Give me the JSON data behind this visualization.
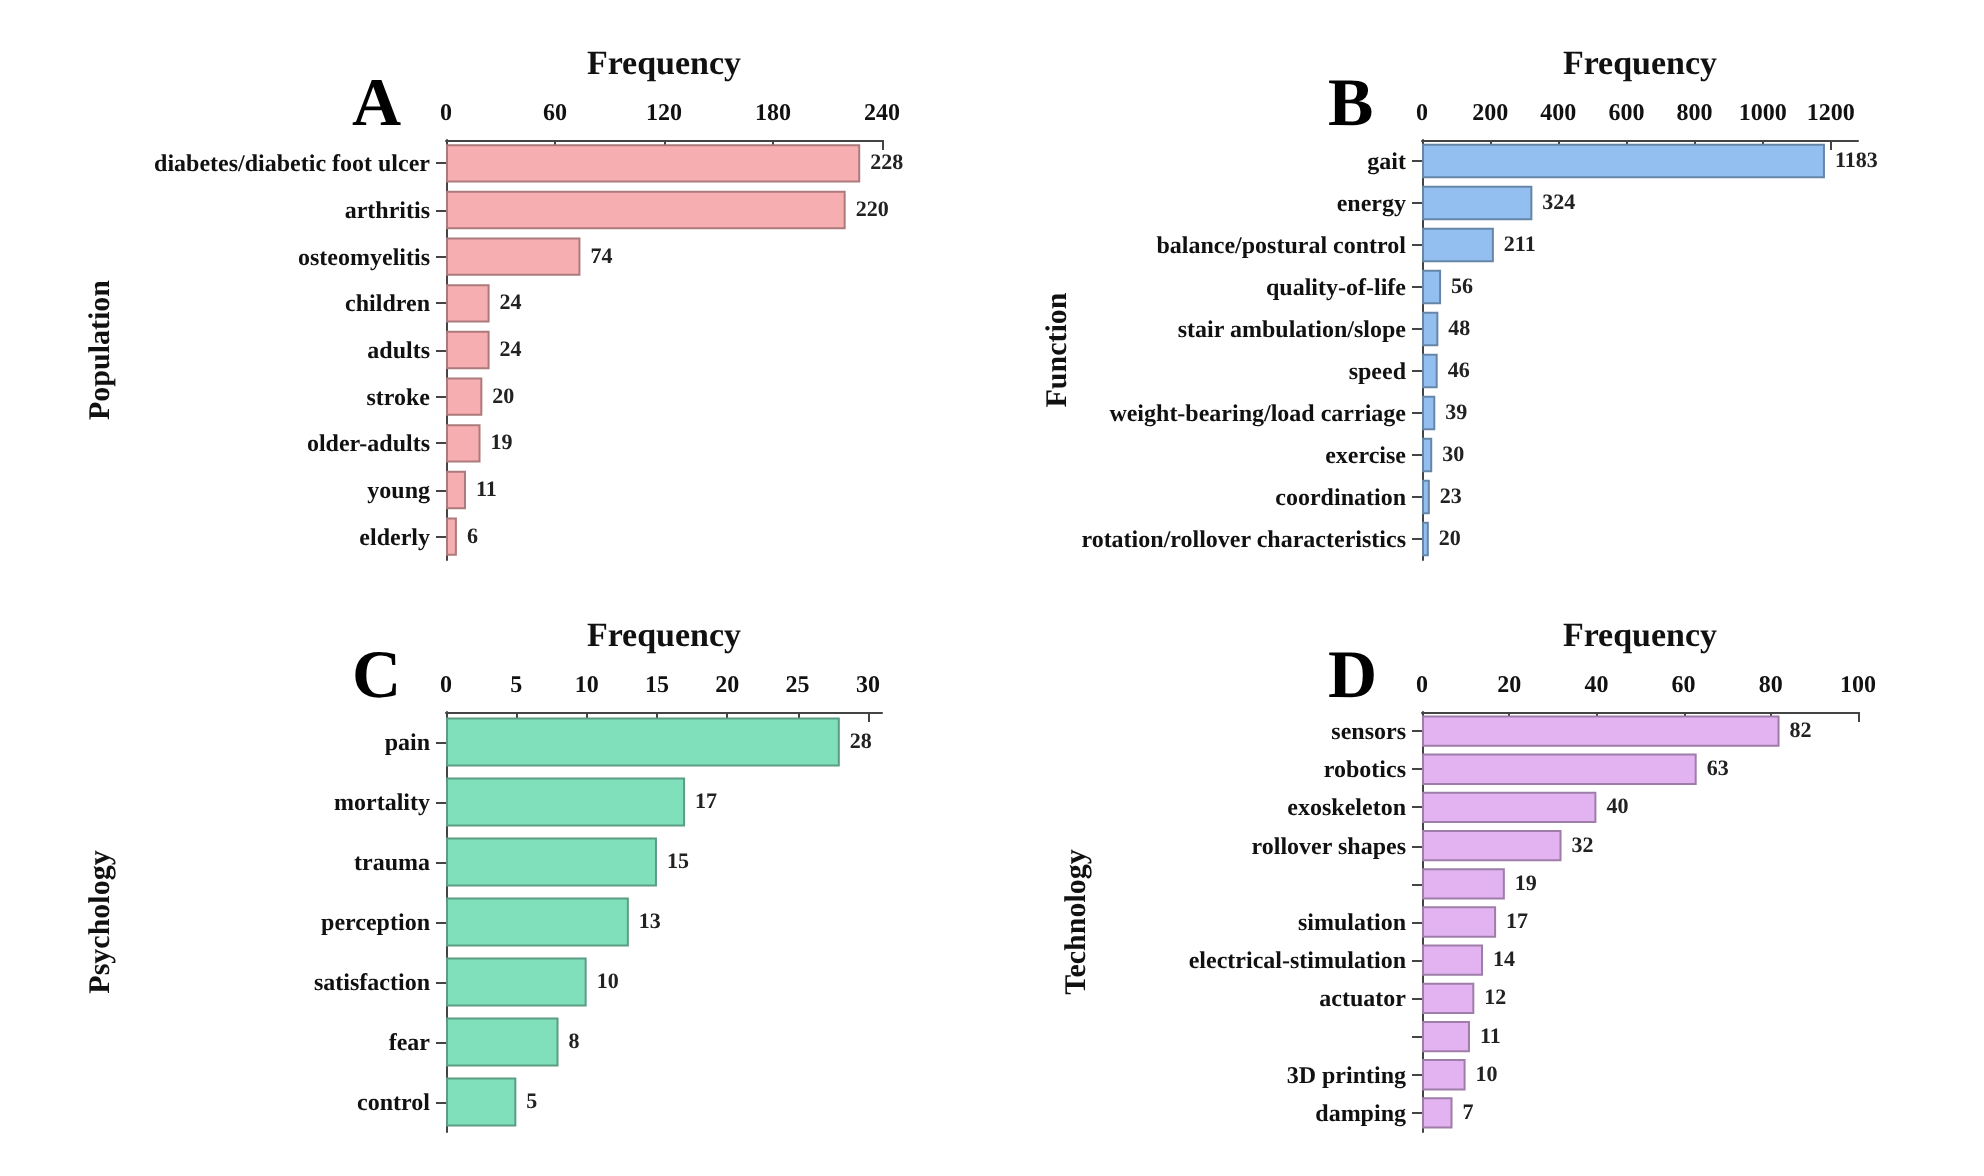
{
  "chart_data": [
    {
      "type": "bar",
      "orientation": "horizontal",
      "title": "A",
      "xlabel": "Frequency",
      "ylabel": "Population",
      "categories": [
        "diabetes/diabetic foot ulcer",
        "arthritis",
        "osteomyelitis",
        "children",
        "adults",
        "stroke",
        "older-adults",
        "young",
        "elderly"
      ],
      "values": [
        228,
        220,
        74,
        24,
        24,
        20,
        19,
        11,
        6
      ],
      "color": "#f7aeb1",
      "xlim": [
        0,
        240
      ],
      "xticks": [
        0,
        60,
        120,
        180,
        240
      ],
      "data_labels": true,
      "grid": false
    },
    {
      "type": "bar",
      "orientation": "horizontal",
      "title": "B",
      "xlabel": "Frequency",
      "ylabel": "Function",
      "categories": [
        "gait",
        "energy",
        "balance/postural control",
        "quality-of-life",
        "stair ambulation/slope",
        "speed",
        "weight-bearing/load carriage",
        "exercise",
        "coordination",
        "rotation/rollover characteristics"
      ],
      "values": [
        1183,
        324,
        211,
        56,
        48,
        46,
        39,
        30,
        23,
        20
      ],
      "color": "#92bff0",
      "xlim": [
        0,
        1280
      ],
      "xticks": [
        0,
        200,
        400,
        600,
        800,
        1000,
        1200
      ],
      "data_labels": true,
      "grid": false
    },
    {
      "type": "bar",
      "orientation": "horizontal",
      "title": "C",
      "xlabel": "Frequency",
      "ylabel": "Psychology",
      "categories": [
        "pain",
        "mortality",
        "trauma",
        "perception",
        "satisfaction",
        "fear",
        "control"
      ],
      "values": [
        28,
        17,
        15,
        13,
        10,
        8,
        5
      ],
      "color": "#80e0bc",
      "xlim": [
        0,
        31
      ],
      "xticks": [
        0,
        5,
        10,
        15,
        20,
        25,
        30
      ],
      "data_labels": true,
      "grid": false
    },
    {
      "type": "bar",
      "orientation": "horizontal",
      "title": "D",
      "xlabel": "Frequency",
      "ylabel": "Technology",
      "categories": [
        "sensors",
        "robotics",
        "exoskeleton",
        "rollover shapes",
        null,
        "simulation",
        "electrical-stimulation",
        "actuator",
        null,
        "3D printing",
        "damping"
      ],
      "values": [
        82,
        63,
        40,
        32,
        19,
        17,
        14,
        12,
        11,
        10,
        7
      ],
      "color": "#e2b3f0",
      "xlim": [
        0,
        100
      ],
      "xticks": [
        0,
        20,
        40,
        60,
        80,
        100
      ],
      "data_labels": true,
      "grid": false
    }
  ]
}
